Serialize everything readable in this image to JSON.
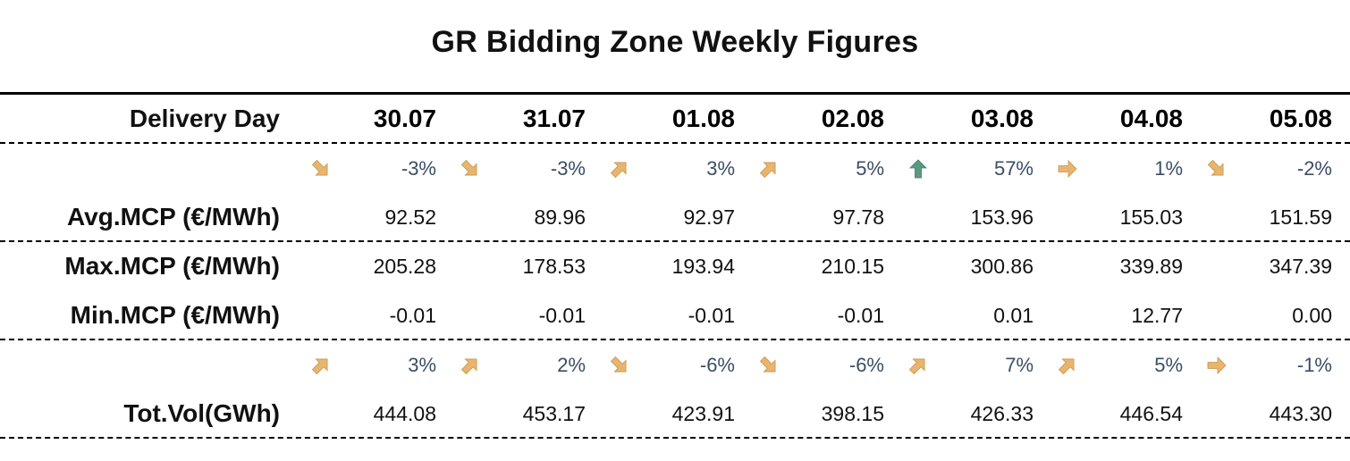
{
  "title": "GR Bidding Zone Weekly Figures",
  "header": {
    "label": "Delivery Day",
    "days": [
      "30.07",
      "31.07",
      "01.08",
      "02.08",
      "03.08",
      "04.08",
      "05.08"
    ]
  },
  "colors": {
    "arrow_up": "#5a9a80",
    "arrow_orange": "#e7b56e",
    "percent_text": "#3b4d66"
  },
  "avg_change": [
    {
      "dir": "down-right",
      "pct": "-3%"
    },
    {
      "dir": "down-right",
      "pct": "-3%"
    },
    {
      "dir": "up-right",
      "pct": "3%"
    },
    {
      "dir": "up-right",
      "pct": "5%"
    },
    {
      "dir": "up",
      "pct": "57%"
    },
    {
      "dir": "right",
      "pct": "1%"
    },
    {
      "dir": "down-right",
      "pct": "-2%"
    }
  ],
  "avg_mcp": {
    "label": "Avg.MCP (€/MWh)",
    "values": [
      "92.52",
      "89.96",
      "92.97",
      "97.78",
      "153.96",
      "155.03",
      "151.59"
    ]
  },
  "max_mcp": {
    "label": "Max.MCP (€/MWh)",
    "values": [
      "205.28",
      "178.53",
      "193.94",
      "210.15",
      "300.86",
      "339.89",
      "347.39"
    ]
  },
  "min_mcp": {
    "label": "Min.MCP (€/MWh)",
    "values": [
      "-0.01",
      "-0.01",
      "-0.01",
      "-0.01",
      "0.01",
      "12.77",
      "0.00"
    ]
  },
  "vol_change": [
    {
      "dir": "up-right",
      "pct": "3%"
    },
    {
      "dir": "up-right",
      "pct": "2%"
    },
    {
      "dir": "down-right",
      "pct": "-6%"
    },
    {
      "dir": "down-right",
      "pct": "-6%"
    },
    {
      "dir": "up-right",
      "pct": "7%"
    },
    {
      "dir": "up-right",
      "pct": "5%"
    },
    {
      "dir": "right",
      "pct": "-1%"
    }
  ],
  "tot_vol": {
    "label": "Tot.Vol(GWh)",
    "values": [
      "444.08",
      "453.17",
      "423.91",
      "398.15",
      "426.33",
      "446.54",
      "443.30"
    ]
  }
}
